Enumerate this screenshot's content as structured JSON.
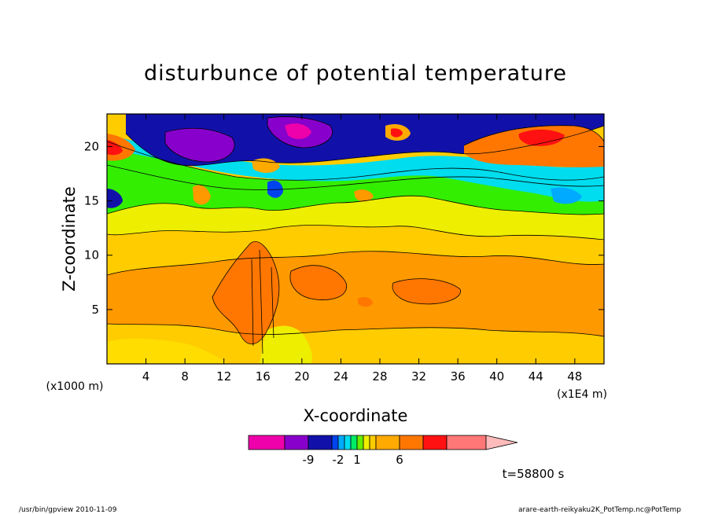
{
  "chart_data": {
    "type": "heatmap",
    "title": "disturbunce of potential temperature",
    "xlabel": "X-coordinate",
    "ylabel": "Z-coordinate",
    "x_unit": "(x1E4 m)",
    "y_unit": "(x1000 m)",
    "x_ticks": [
      4,
      8,
      12,
      16,
      20,
      24,
      28,
      32,
      36,
      40,
      44,
      48
    ],
    "y_ticks": [
      5,
      10,
      15,
      20
    ],
    "xlim": [
      0,
      51
    ],
    "ylim": [
      0,
      23
    ],
    "colorbar": {
      "tick_labels": [
        "-9",
        "-2",
        "1",
        "6"
      ],
      "tick_positions": [
        -9,
        -2,
        1,
        6
      ],
      "colors": [
        "#ee00aa",
        "#8800cc",
        "#1111aa",
        "#0044ee",
        "#00aaff",
        "#00ddee",
        "#00ee66",
        "#66ee00",
        "#eeee00",
        "#ffcc00",
        "#ffaa00",
        "#ff7700",
        "#ff1111",
        "#ff7777",
        "#ffbbbb"
      ],
      "extend": "max"
    },
    "timestamp": "t=58800 s",
    "grid": false,
    "legend": "bottom"
  },
  "footer": {
    "left": "/usr/bin/gpview   2010-11-09",
    "right": "arare-earth-reikyaku2K_PotTemp.nc@PotTemp"
  }
}
